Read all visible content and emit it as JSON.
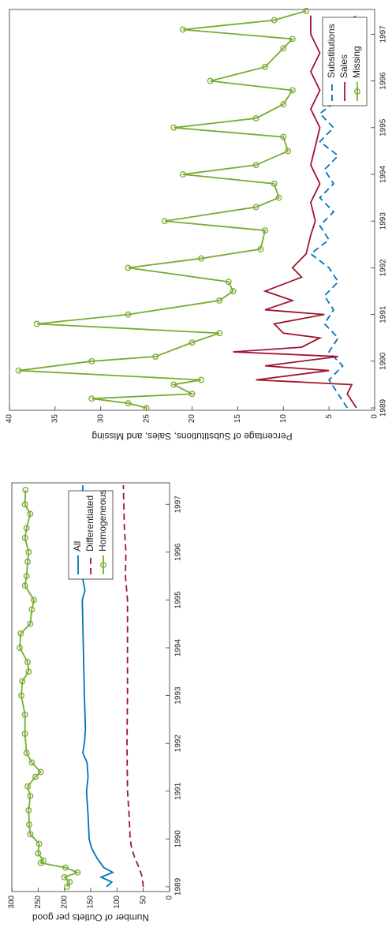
{
  "chart_data": [
    {
      "type": "line",
      "y_label": "Number of Outlets per good",
      "xlim": [
        1988.9,
        1997.45
      ],
      "xticks": [
        1989,
        1990,
        1991,
        1992,
        1993,
        1994,
        1995,
        1996,
        1997
      ],
      "ylim": [
        0,
        300
      ],
      "yticks": [
        0,
        50,
        100,
        150,
        200,
        250,
        300
      ],
      "grid": false,
      "legend": "right",
      "series": [
        {
          "name": "All",
          "color": "#0072bd",
          "dash": "solid",
          "marker": "none",
          "x": [
            1989.0,
            1989.1,
            1989.2,
            1989.3,
            1989.4,
            1989.6,
            1989.8,
            1990.0,
            1990.5,
            1991.0,
            1991.3,
            1991.6,
            1991.8,
            1992.0,
            1992.3,
            1993.0,
            1993.5,
            1994.0,
            1994.5,
            1995.0,
            1995.2,
            1995.5,
            1996.0,
            1996.5,
            1997.0,
            1997.4
          ],
          "values": [
            120,
            110,
            130,
            108,
            125,
            138,
            148,
            153,
            155,
            158,
            155,
            157,
            165,
            162,
            160,
            162,
            163,
            164,
            165,
            166,
            161,
            166,
            165,
            166,
            165,
            165
          ]
        },
        {
          "name": "Differentiated",
          "color": "#a2142f",
          "dash": "dashed",
          "marker": "none",
          "x": [
            1989,
            1989.2,
            1989.4,
            1989.6,
            1989.8,
            1990,
            1990.5,
            1991,
            1992,
            1993,
            1994,
            1995,
            1995.5,
            1996,
            1996.5,
            1997,
            1997.4
          ],
          "values": [
            50,
            52,
            58,
            66,
            72,
            75,
            77,
            80,
            81,
            80,
            80,
            80,
            84,
            83,
            86,
            87,
            88
          ]
        },
        {
          "name": "Homogeneous",
          "color": "#77ac30",
          "dash": "solid",
          "marker": "circle",
          "x": [
            1989,
            1989.1,
            1989.2,
            1989.3,
            1989.4,
            1989.5,
            1989.55,
            1989.7,
            1989.9,
            1990.1,
            1990.3,
            1990.6,
            1990.9,
            1991.1,
            1991.3,
            1991.4,
            1991.6,
            1991.8,
            1992.2,
            1992.6,
            1993.0,
            1993.3,
            1993.5,
            1993.7,
            1994.0,
            1994.3,
            1994.5,
            1994.8,
            1995.0,
            1995.3,
            1995.5,
            1995.8,
            1996.0,
            1996.3,
            1996.5,
            1996.8,
            1997.0,
            1997.3
          ],
          "values": [
            195,
            190,
            200,
            175,
            198,
            245,
            240,
            250,
            248,
            265,
            267,
            268,
            265,
            270,
            255,
            245,
            262,
            272,
            275,
            275,
            282,
            280,
            268,
            270,
            285,
            283,
            265,
            262,
            258,
            275,
            272,
            270,
            268,
            275,
            272,
            265,
            275,
            274
          ]
        }
      ]
    },
    {
      "type": "line",
      "y_label": "Percentage of Substitutions, Sales, and Missing",
      "xlim": [
        1988.95,
        1997.53
      ],
      "xticks": [
        1989,
        1990,
        1991,
        1992,
        1993,
        1994,
        1995,
        1996,
        1997
      ],
      "ylim": [
        0,
        40
      ],
      "yticks": [
        0,
        5,
        10,
        15,
        20,
        25,
        30,
        35,
        40
      ],
      "grid": false,
      "legend": "lower right",
      "series": [
        {
          "name": "Substitutions",
          "color": "#0072bd",
          "dash": "dashed",
          "marker": "none",
          "x": [
            1989,
            1989.3,
            1989.6,
            1989.9,
            1990.2,
            1990.5,
            1990.8,
            1991.1,
            1991.4,
            1991.7,
            1992,
            1992.3,
            1992.6,
            1992.9,
            1993.2,
            1993.5,
            1993.8,
            1994.1,
            1994.4,
            1994.7,
            1995,
            1995.3,
            1995.6,
            1995.9,
            1996.2,
            1996.5,
            1996.8,
            1997.1,
            1997.4
          ],
          "values": [
            3,
            4,
            5,
            3.5,
            5,
            4,
            5.5,
            4.5,
            5.5,
            4,
            5,
            7,
            5,
            6,
            4.5,
            6,
            4.5,
            5.5,
            4,
            6,
            4.5,
            6,
            4,
            5,
            3.5,
            5,
            3,
            4,
            2
          ]
        },
        {
          "name": "Sales",
          "color": "#a2142f",
          "dash": "solid",
          "marker": "none",
          "x": [
            1989,
            1989.3,
            1989.5,
            1989.6,
            1989.8,
            1989.9,
            1990.1,
            1990.2,
            1990.3,
            1990.5,
            1990.6,
            1990.8,
            1991,
            1991.1,
            1991.3,
            1991.5,
            1991.8,
            1992,
            1992.3,
            1992.7,
            1993,
            1993.4,
            1993.8,
            1994.2,
            1994.6,
            1995,
            1995.4,
            1995.8,
            1996.2,
            1996.6,
            1997,
            1997.4
          ],
          "values": [
            2,
            3,
            2.5,
            13,
            5,
            12,
            4,
            15.5,
            8,
            6,
            10,
            11,
            5.5,
            12,
            9,
            12,
            8,
            9,
            7.5,
            7,
            6.5,
            7,
            6,
            7,
            6.5,
            6,
            7,
            6,
            7,
            6,
            7,
            7
          ]
        },
        {
          "name": "Missing",
          "color": "#77ac30",
          "dash": "solid",
          "marker": "circle",
          "x": [
            1989,
            1989.1,
            1989.2,
            1989.3,
            1989.5,
            1989.6,
            1989.8,
            1990,
            1990.1,
            1990.4,
            1990.6,
            1990.8,
            1991,
            1991.3,
            1991.5,
            1991.7,
            1992,
            1992.2,
            1992.4,
            1992.8,
            1993,
            1993.3,
            1993.5,
            1993.8,
            1994,
            1994.2,
            1994.5,
            1994.8,
            1995,
            1995.2,
            1995.5,
            1995.8,
            1996,
            1996.3,
            1996.7,
            1996.9,
            1997.1,
            1997.3,
            1997.5
          ],
          "values": [
            25,
            27,
            31,
            20,
            22,
            19,
            39,
            31,
            24,
            20,
            17,
            37,
            27,
            17,
            15.5,
            16,
            27,
            19,
            12.5,
            12,
            23,
            13,
            10.5,
            11,
            21,
            13,
            9.5,
            10,
            22,
            13,
            10,
            9,
            18,
            12,
            10,
            9,
            21,
            11,
            7.5
          ]
        }
      ]
    }
  ]
}
